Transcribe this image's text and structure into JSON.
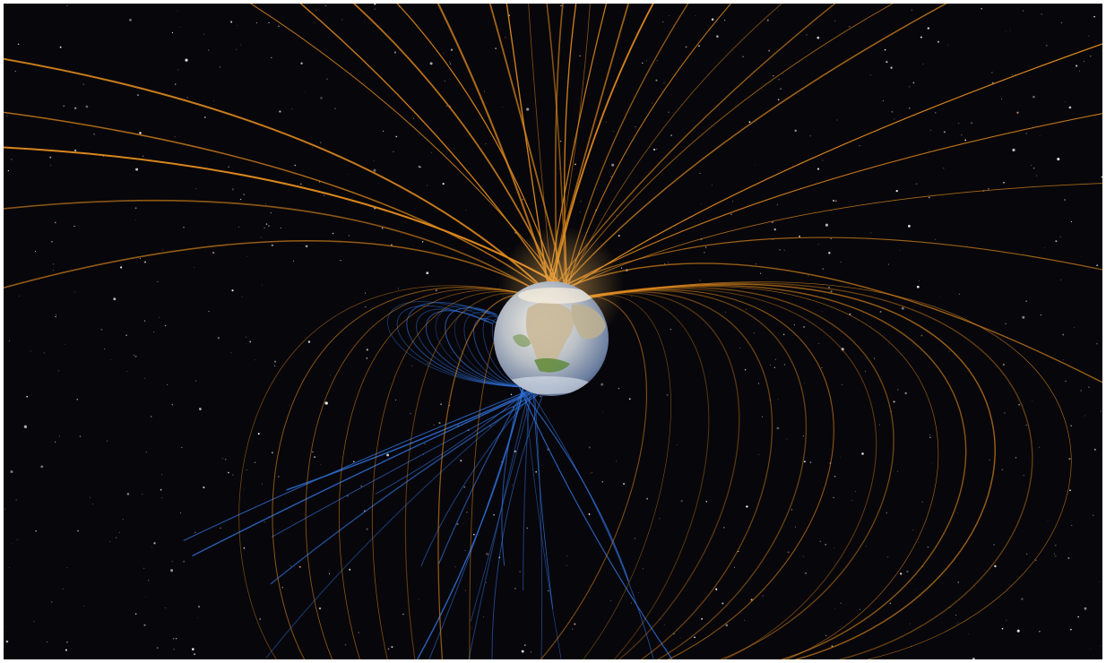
{
  "scene": {
    "subject": "earth-magnetic-field",
    "colors": {
      "space": "#07060a",
      "north_field_lines": "#e08a1e",
      "south_field_lines": "#2f6fd6",
      "star": "#ffffff",
      "ocean": "#5c78a8",
      "land": "#c4b59a",
      "vegetation": "#5f8a3c"
    }
  }
}
